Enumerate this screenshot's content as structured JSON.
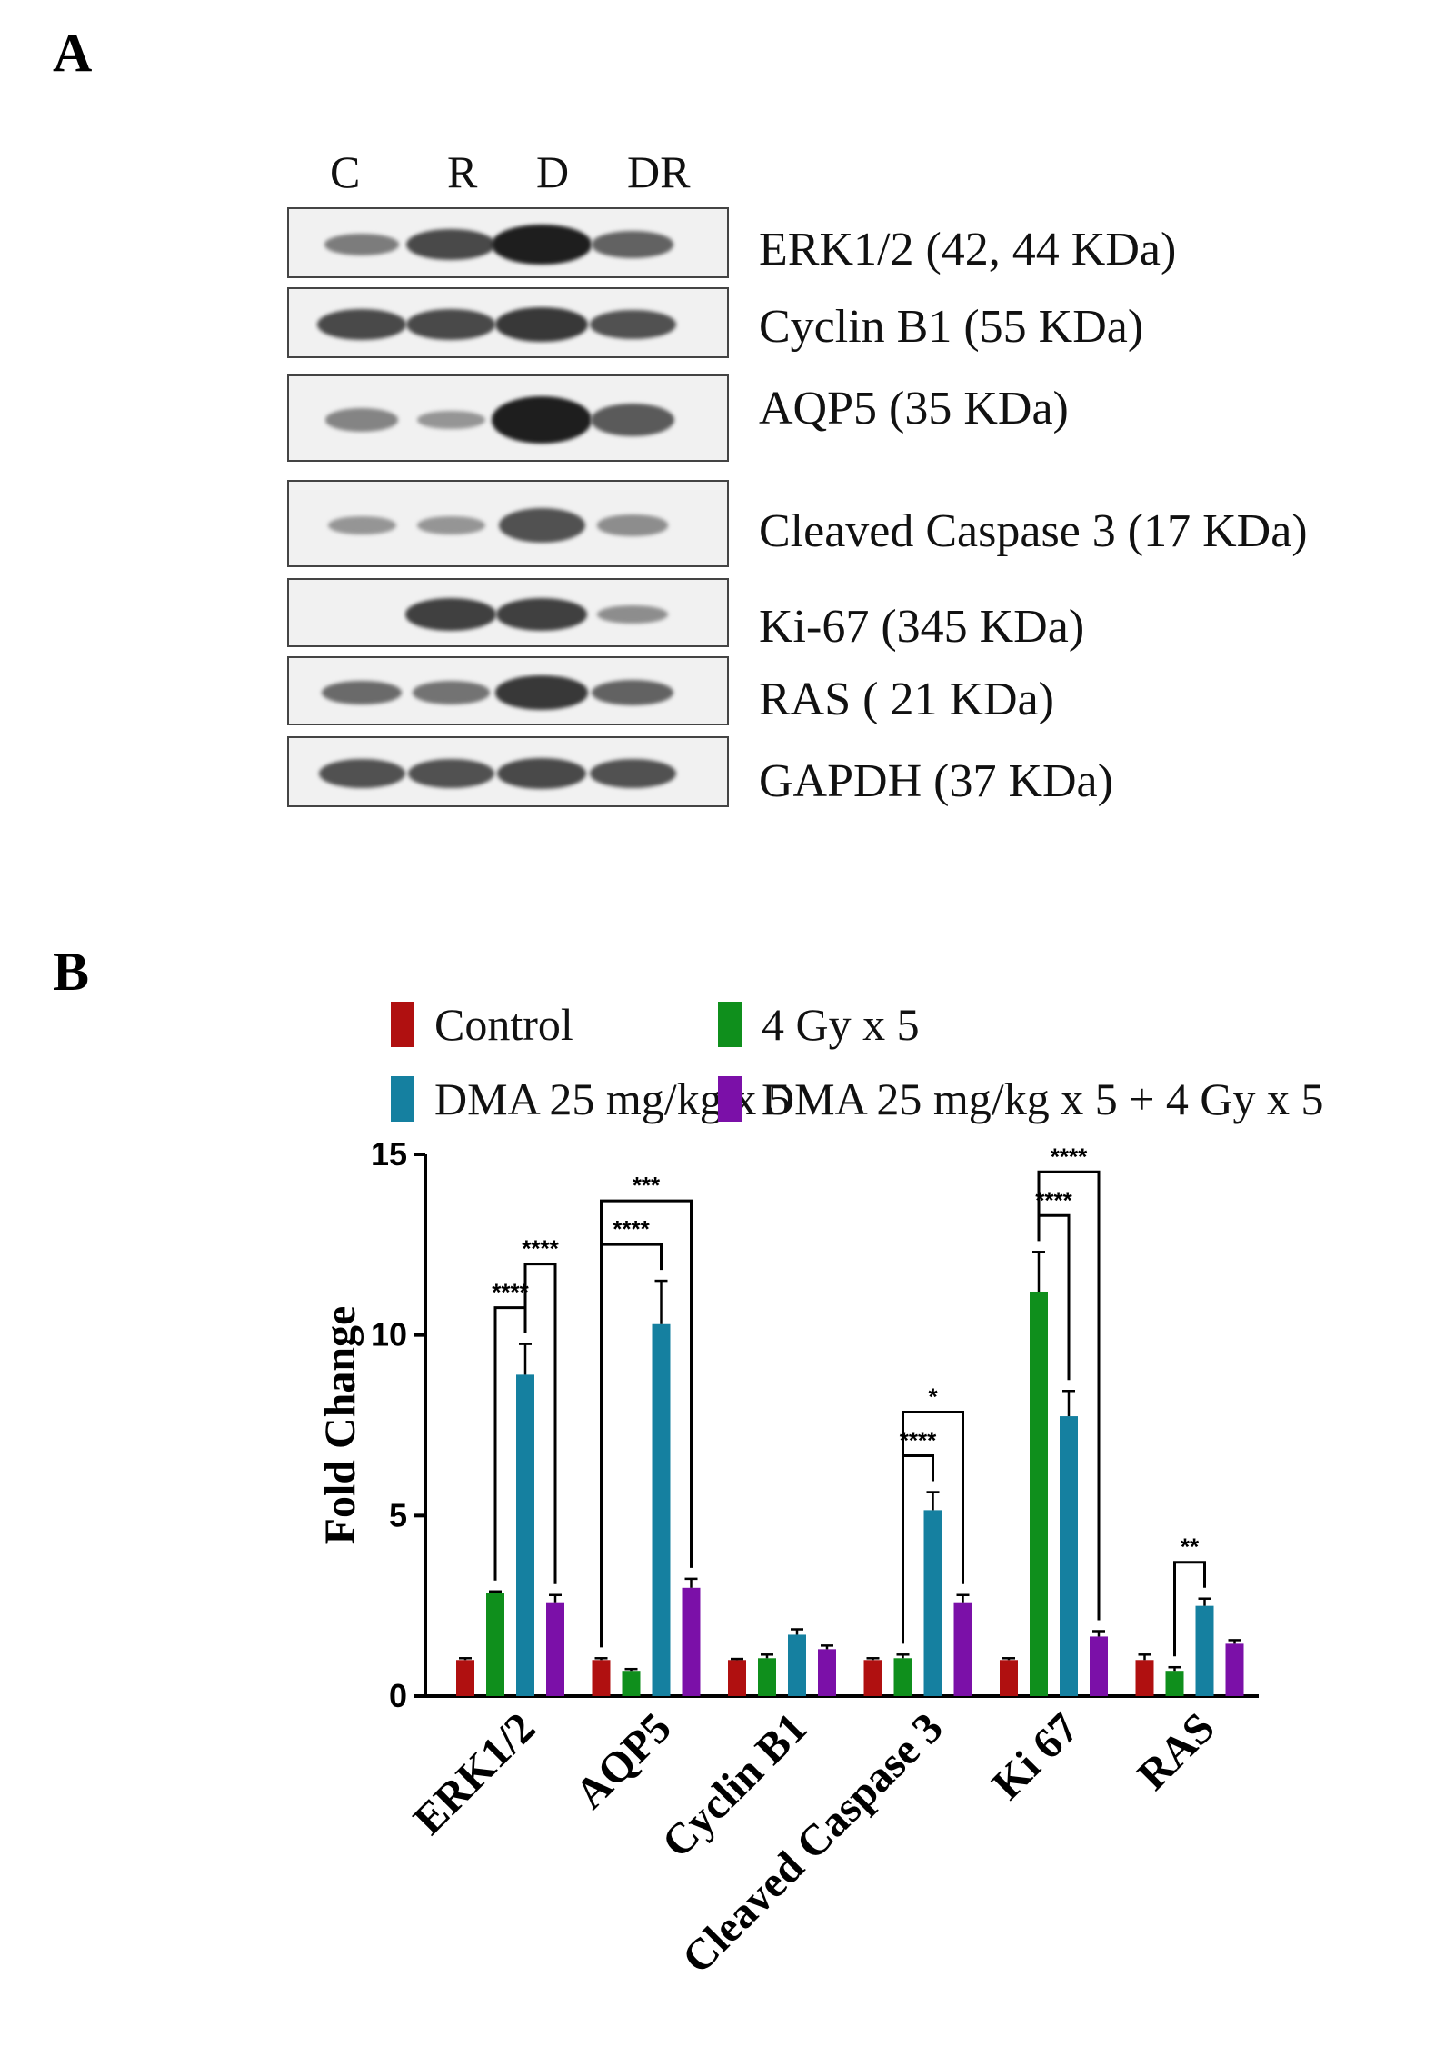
{
  "panel_a": {
    "label": "A",
    "lanes": [
      "C",
      "R",
      "D",
      "DR"
    ],
    "blots": [
      {
        "label": "ERK1/2 (42, 44 KDa)",
        "intensity": [
          0.45,
          0.75,
          1.0,
          0.6
        ]
      },
      {
        "label": "Cyclin B1 (55 KDa)",
        "intensity": [
          0.75,
          0.75,
          0.85,
          0.7
        ]
      },
      {
        "label": "AQP5 (35 KDa)",
        "intensity": [
          0.4,
          0.3,
          1.0,
          0.65
        ]
      },
      {
        "label": "Cleaved Caspase 3 (17 KDa)",
        "intensity": [
          0.3,
          0.3,
          0.7,
          0.35
        ]
      },
      {
        "label": "Ki-67 (345 KDa)",
        "intensity": [
          0.0,
          0.8,
          0.8,
          0.35
        ]
      },
      {
        "label": "RAS ( 21 KDa)",
        "intensity": [
          0.55,
          0.5,
          0.85,
          0.6
        ]
      },
      {
        "label": "GAPDH (37 KDa)",
        "intensity": [
          0.7,
          0.7,
          0.75,
          0.7
        ]
      }
    ]
  },
  "panel_b": {
    "label": "B"
  },
  "chart_data": {
    "type": "bar",
    "categories": [
      "ERK1/2",
      "AQP5",
      "Cyclin B1",
      "Cleaved Caspase 3",
      "Ki 67",
      "RAS"
    ],
    "series": [
      {
        "name": "Control",
        "color": "#b01010",
        "values": [
          1.0,
          1.0,
          1.0,
          1.0,
          1.0,
          1.0
        ],
        "errors": [
          0.05,
          0.05,
          0.03,
          0.05,
          0.05,
          0.15
        ]
      },
      {
        "name": "4 Gy x 5",
        "color": "#0f8f1c",
        "values": [
          2.85,
          0.7,
          1.05,
          1.05,
          11.2,
          0.7
        ],
        "errors": [
          0.05,
          0.05,
          0.1,
          0.1,
          1.1,
          0.1
        ]
      },
      {
        "name": "DMA 25 mg/kg x 5",
        "color": "#1580a0",
        "values": [
          8.9,
          10.3,
          1.7,
          5.15,
          7.75,
          2.5
        ],
        "errors": [
          0.85,
          1.2,
          0.15,
          0.5,
          0.7,
          0.2
        ]
      },
      {
        "name": "DMA 25 mg/kg x 5 + 4 Gy x 5",
        "color": "#7b10a8",
        "values": [
          2.6,
          3.0,
          1.3,
          2.6,
          1.65,
          1.45
        ],
        "errors": [
          0.2,
          0.25,
          0.1,
          0.2,
          0.15,
          0.1
        ]
      }
    ],
    "ylabel": "Fold Change",
    "ylim": [
      0,
      15
    ],
    "yticks": [
      "0",
      "5",
      "10",
      "15"
    ],
    "legend_position": "top",
    "significance": [
      {
        "category": 0,
        "from": 1,
        "to": 2,
        "label": "****",
        "level": 1
      },
      {
        "category": 0,
        "from": 2,
        "to": 3,
        "label": "****",
        "level": 2
      },
      {
        "category": 1,
        "from": 0,
        "to": 2,
        "label": "****",
        "level": 1
      },
      {
        "category": 1,
        "from": 0,
        "to": 3,
        "label": "***",
        "level": 2
      },
      {
        "category": 3,
        "from": 1,
        "to": 2,
        "label": "****",
        "level": 1
      },
      {
        "category": 3,
        "from": 1,
        "to": 3,
        "label": "*",
        "level": 2
      },
      {
        "category": 4,
        "from": 1,
        "to": 2,
        "label": "****",
        "level": 1
      },
      {
        "category": 4,
        "from": 1,
        "to": 3,
        "label": "****",
        "level": 2
      },
      {
        "category": 5,
        "from": 1,
        "to": 2,
        "label": "**",
        "level": 1
      }
    ]
  }
}
